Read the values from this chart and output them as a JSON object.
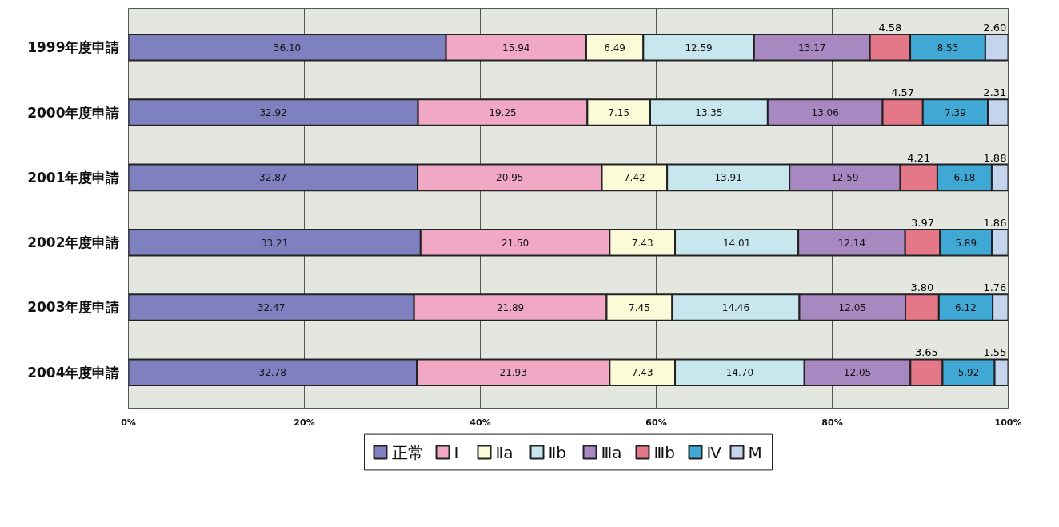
{
  "chart_data": {
    "type": "bar",
    "orientation": "horizontal",
    "stacked": true,
    "categories": [
      "1999年度申請",
      "2000年度申請",
      "2001年度申請",
      "2002年度申請",
      "2003年度申請",
      "2004年度申請"
    ],
    "series": [
      {
        "name": "正常",
        "color": "#7f80c0",
        "values": [
          36.1,
          32.92,
          32.87,
          33.21,
          32.47,
          32.78
        ],
        "value_labels": [
          "36.10",
          "32.92",
          "32.87",
          "33.21",
          "32.47",
          "32.78"
        ]
      },
      {
        "name": "Ⅰ",
        "color": "#f0a8c4",
        "values": [
          15.94,
          19.25,
          20.95,
          21.5,
          21.89,
          21.93
        ],
        "value_labels": [
          "15.94",
          "19.25",
          "20.95",
          "21.50",
          "21.89",
          "21.93"
        ]
      },
      {
        "name": "Ⅱa",
        "color": "#fbfbd8",
        "values": [
          6.49,
          7.15,
          7.42,
          7.43,
          7.45,
          7.43
        ],
        "value_labels": [
          "6.49",
          "7.15",
          "7.42",
          "7.43",
          "7.45",
          "7.43"
        ]
      },
      {
        "name": "Ⅱb",
        "color": "#c8e6ee",
        "values": [
          12.59,
          13.35,
          13.91,
          14.01,
          14.46,
          14.7
        ],
        "value_labels": [
          "12.59",
          "13.35",
          "13.91",
          "14.01",
          "14.46",
          "14.70"
        ]
      },
      {
        "name": "Ⅲa",
        "color": "#a888c0",
        "values": [
          13.17,
          13.06,
          12.59,
          12.14,
          12.05,
          12.05
        ],
        "value_labels": [
          "13.17",
          "13.06",
          "12.59",
          "12.14",
          "12.05",
          "12.05"
        ]
      },
      {
        "name": "Ⅲb",
        "color": "#e47888",
        "values": [
          4.58,
          4.57,
          4.21,
          3.97,
          3.8,
          3.65
        ],
        "value_labels": [
          "4.58",
          "4.57",
          "4.21",
          "3.97",
          "3.80",
          "3.65"
        ]
      },
      {
        "name": "Ⅳ",
        "color": "#40a8d4",
        "values": [
          8.53,
          7.39,
          6.18,
          5.89,
          6.12,
          5.92
        ],
        "value_labels": [
          "8.53",
          "7.39",
          "6.18",
          "5.89",
          "6.12",
          "5.92"
        ]
      },
      {
        "name": "M",
        "color": "#c4d4ec",
        "values": [
          2.6,
          2.31,
          1.88,
          1.86,
          1.76,
          1.55
        ],
        "value_labels": [
          "2.60",
          "2.31",
          "1.88",
          "1.86",
          "1.76",
          "1.55"
        ]
      }
    ],
    "xlim": [
      0,
      100
    ],
    "xticks": [
      {
        "value": 0,
        "label": "0%"
      },
      {
        "value": 20,
        "label": "20%"
      },
      {
        "value": 40,
        "label": "40%"
      },
      {
        "value": 60,
        "label": "60%"
      },
      {
        "value": 80,
        "label": "80%"
      },
      {
        "value": 100,
        "label": "100%"
      }
    ],
    "grid": "x",
    "legend": "bottom"
  }
}
